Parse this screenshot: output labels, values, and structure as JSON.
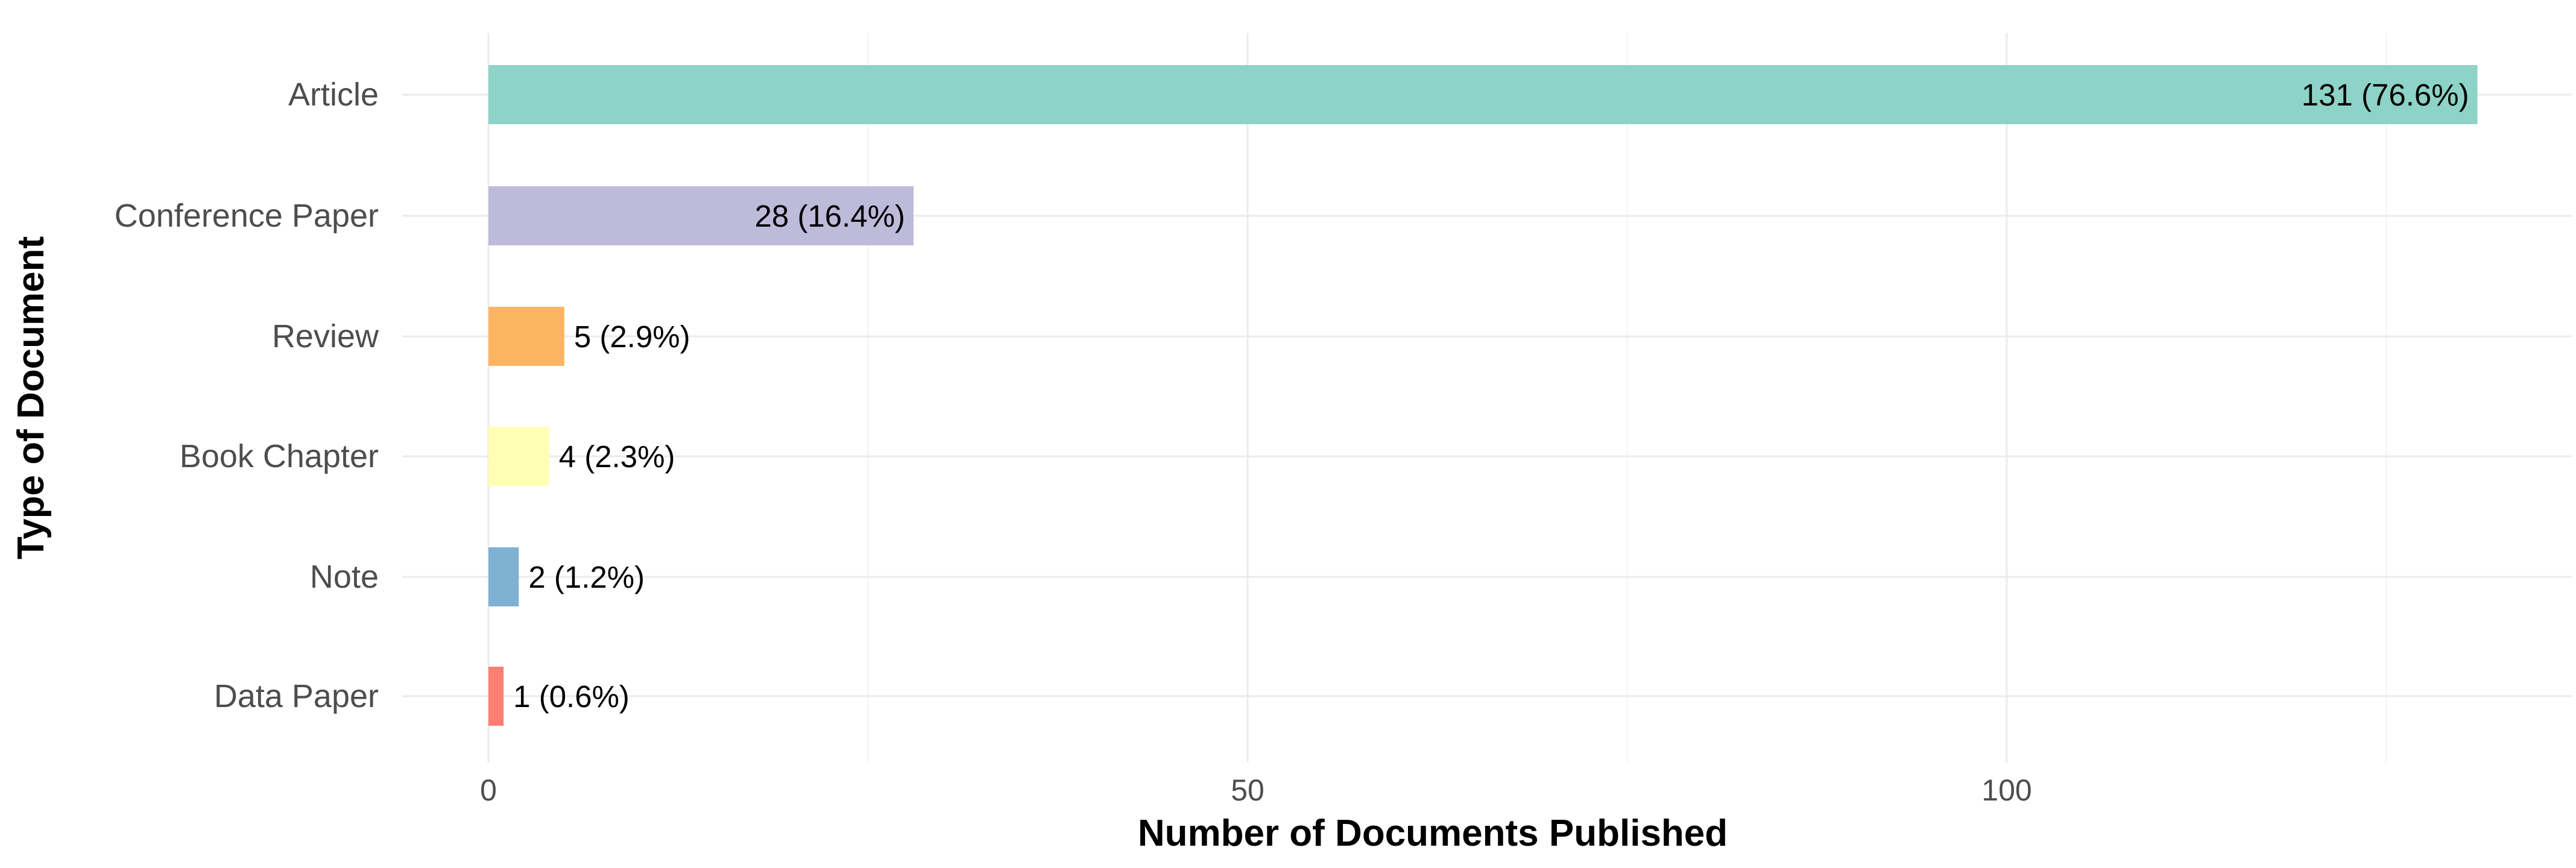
{
  "chart_data": {
    "type": "bar",
    "orientation": "horizontal",
    "xlabel": "Number of Documents Published",
    "ylabel": "Type of Document",
    "xlim": [
      -5,
      138
    ],
    "x_ticks": [
      0,
      50,
      100
    ],
    "x_minor_ticks": [
      25,
      75,
      125
    ],
    "grid": true,
    "categories": [
      "Article",
      "Conference Paper",
      "Review",
      "Book Chapter",
      "Note",
      "Data Paper"
    ],
    "values": [
      131,
      28,
      5,
      4,
      2,
      1
    ],
    "labels": [
      "131 (76.6%)",
      "28 (16.4%)",
      "5 (2.9%)",
      "4 (2.3%)",
      "2 (1.2%)",
      "1 (0.6%)"
    ],
    "colors": [
      "#8DD3C7",
      "#BEBADA",
      "#FDB462",
      "#FFFFB3",
      "#80B1D3",
      "#FB8072"
    ]
  }
}
